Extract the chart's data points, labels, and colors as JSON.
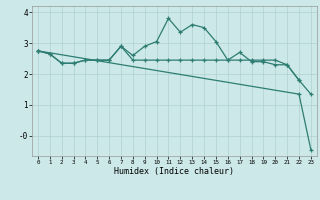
{
  "xlabel": "Humidex (Indice chaleur)",
  "x": [
    0,
    1,
    2,
    3,
    4,
    5,
    6,
    7,
    8,
    9,
    10,
    11,
    12,
    13,
    14,
    15,
    16,
    17,
    18,
    19,
    20,
    21,
    22,
    23
  ],
  "line1_y": [
    2.75,
    2.65,
    2.35,
    2.35,
    2.45,
    2.45,
    2.45,
    2.9,
    2.45,
    2.45,
    2.45,
    2.45,
    2.45,
    2.45,
    2.45,
    2.45,
    2.45,
    2.45,
    2.45,
    2.45,
    2.45,
    2.3,
    1.8,
    1.35
  ],
  "line2_x": [
    0,
    1,
    2,
    3,
    4,
    5,
    6,
    7,
    8,
    9,
    10,
    11,
    12,
    13,
    14,
    15,
    16,
    17,
    18,
    19,
    20,
    21,
    22
  ],
  "line2_y": [
    2.75,
    2.65,
    2.35,
    2.35,
    2.45,
    2.45,
    2.45,
    2.9,
    2.6,
    2.9,
    3.05,
    3.8,
    3.35,
    3.6,
    3.5,
    3.05,
    2.45,
    2.7,
    2.4,
    2.4,
    2.3,
    2.3,
    1.8
  ],
  "line3_x": [
    0,
    22,
    23
  ],
  "line3_y": [
    2.75,
    1.35,
    -0.45
  ],
  "color": "#2e7d72",
  "bg_color": "#cce8e8",
  "grid_color": "#b0d0d0",
  "ylim": [
    -0.65,
    4.2
  ],
  "xlim": [
    -0.5,
    23.5
  ],
  "yticks": [
    0,
    1,
    2,
    3,
    4
  ],
  "ytick_labels": [
    "-0",
    "1",
    "2",
    "3",
    "4"
  ],
  "xticks": [
    0,
    1,
    2,
    3,
    4,
    5,
    6,
    7,
    8,
    9,
    10,
    11,
    12,
    13,
    14,
    15,
    16,
    17,
    18,
    19,
    20,
    21,
    22,
    23
  ]
}
